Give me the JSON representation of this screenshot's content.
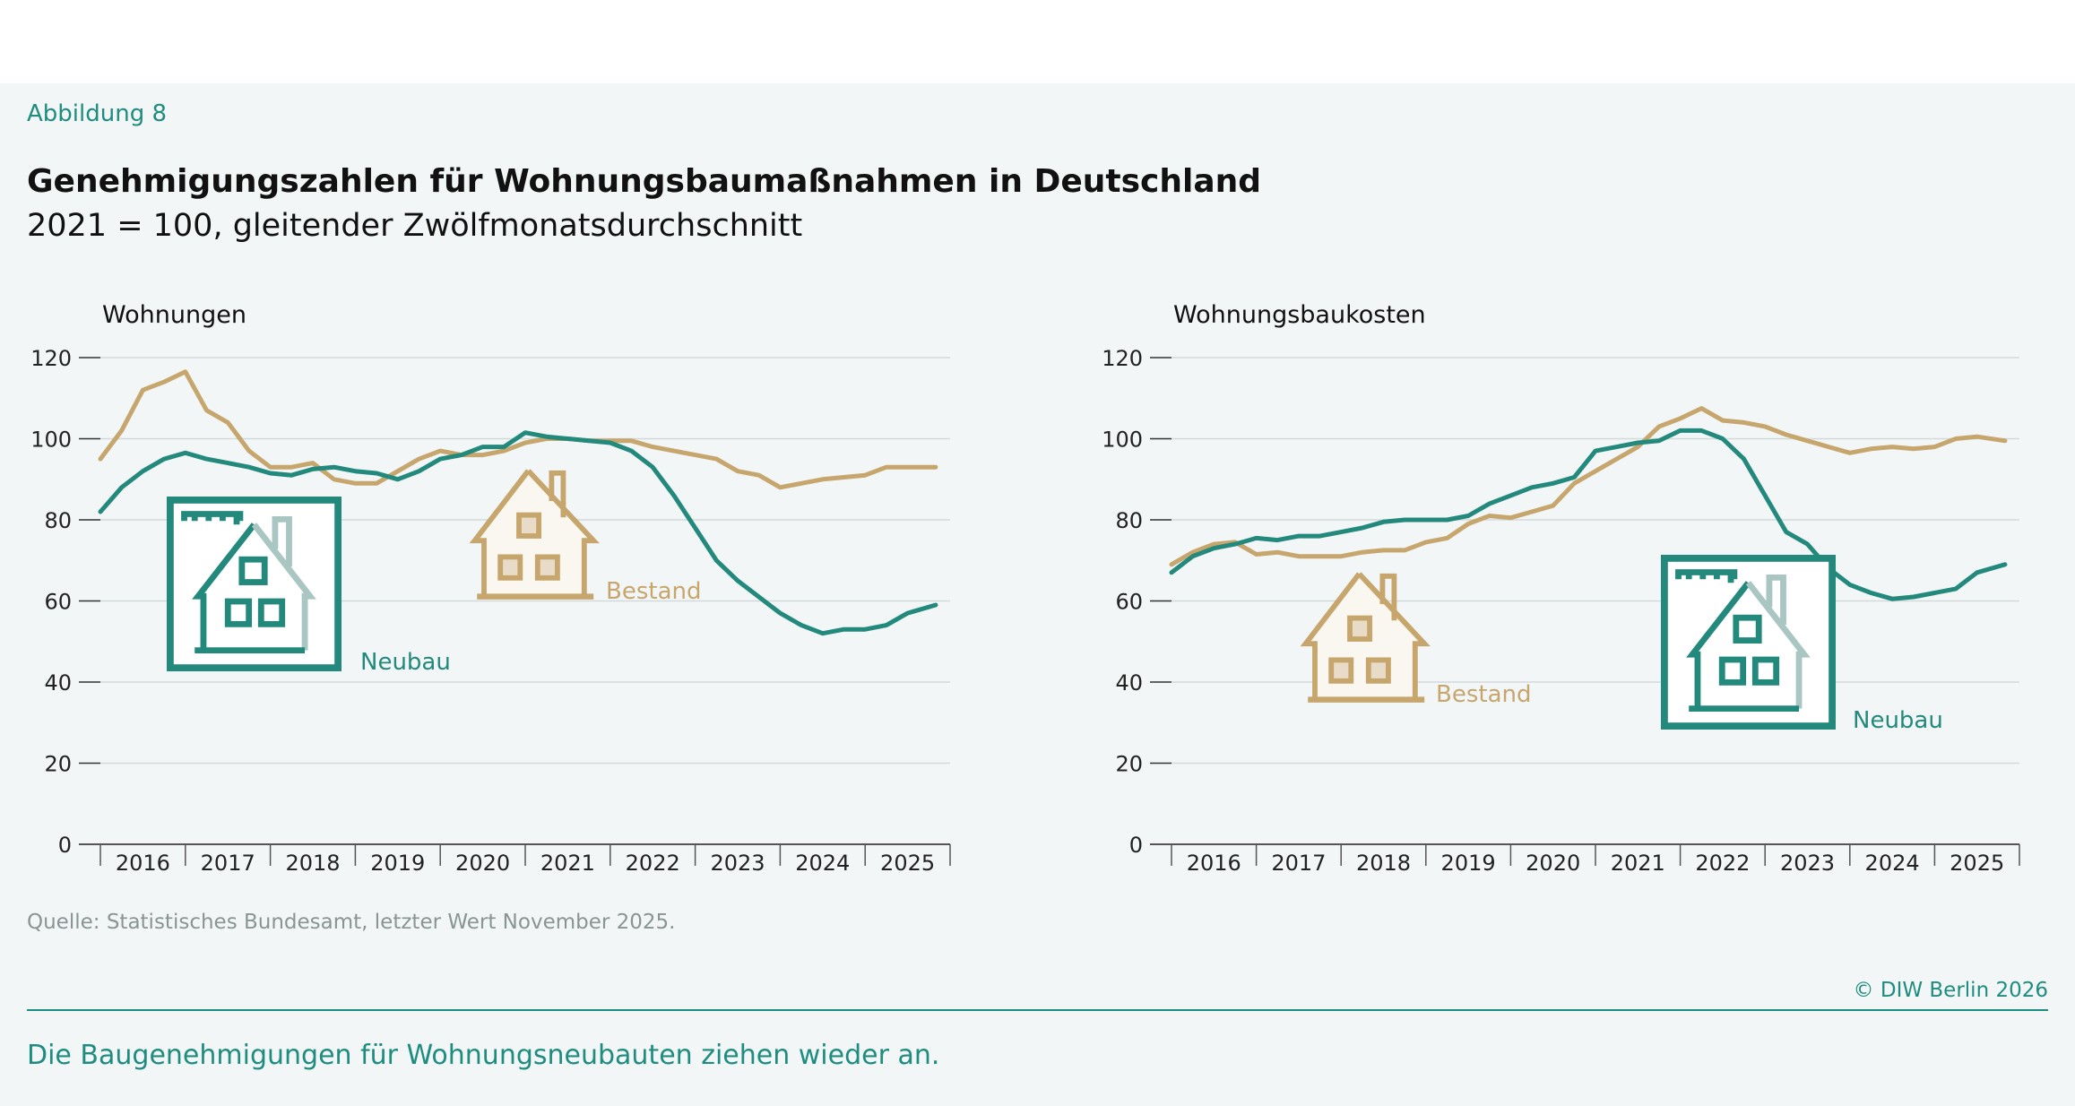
{
  "figure_label": "Abbildung 8",
  "title": "Genehmigungszahlen für Wohnungsbaumaßnahmen in Deutschland",
  "subtitle": "2021 = 100, gleitender Zwölfmonatsdurchschnitt",
  "source": "Quelle: Statistisches Bundesamt, letzter Wert November 2025.",
  "copyright": "© DIW Berlin 2026",
  "caption": "Die Baugenehmigungen für Wohnungsneubauten ziehen wieder an.",
  "colors": {
    "neubau": "#23897d",
    "bestand": "#c6a66d",
    "neubau_light": "#a9c6c3",
    "grid": "#d3d9da"
  },
  "icons": {
    "neubau": "new-building-house-icon",
    "bestand": "existing-house-icon"
  },
  "chart_data": [
    {
      "type": "line",
      "title": "Wohnungen",
      "ylim": [
        0,
        120
      ],
      "yticks": [
        0,
        20,
        40,
        60,
        80,
        100,
        120
      ],
      "xlim": [
        2016,
        2026
      ],
      "xtick_labels": [
        "2016",
        "2017",
        "2018",
        "2019",
        "2020",
        "2021",
        "2022",
        "2023",
        "2024",
        "2025"
      ],
      "grid": true,
      "x": [
        2016.0,
        2016.25,
        2016.5,
        2016.75,
        2017.0,
        2017.25,
        2017.5,
        2017.75,
        2018.0,
        2018.25,
        2018.5,
        2018.75,
        2019.0,
        2019.25,
        2019.5,
        2019.75,
        2020.0,
        2020.25,
        2020.5,
        2020.75,
        2021.0,
        2021.25,
        2021.5,
        2021.75,
        2022.0,
        2022.25,
        2022.5,
        2022.75,
        2023.0,
        2023.25,
        2023.5,
        2023.75,
        2024.0,
        2024.25,
        2024.5,
        2024.75,
        2025.0,
        2025.25,
        2025.5,
        2025.83
      ],
      "series": [
        {
          "name": "Neubau",
          "values": [
            82,
            88,
            92,
            95,
            96.5,
            95,
            94,
            93,
            91.5,
            91,
            92.5,
            93,
            92,
            91.5,
            90,
            92,
            95,
            96,
            98,
            98,
            101.5,
            100.5,
            100,
            99.5,
            99,
            97,
            93,
            86,
            78,
            70,
            65,
            61,
            57,
            54,
            52,
            53,
            53,
            54,
            57,
            59
          ]
        },
        {
          "name": "Bestand",
          "values": [
            95,
            102,
            112,
            114,
            116.5,
            107,
            104,
            97,
            93,
            93,
            94,
            90,
            89,
            89,
            92,
            95,
            97,
            96,
            96,
            97,
            99,
            100,
            100,
            99.5,
            99.5,
            99.5,
            98,
            97,
            96,
            95,
            92,
            91,
            88,
            89,
            90,
            90.5,
            91,
            93,
            93,
            93
          ]
        }
      ]
    },
    {
      "type": "line",
      "title": "Wohnungsbaukosten",
      "ylim": [
        0,
        120
      ],
      "yticks": [
        0,
        20,
        40,
        60,
        80,
        100,
        120
      ],
      "xlim": [
        2016,
        2026
      ],
      "xtick_labels": [
        "2016",
        "2017",
        "2018",
        "2019",
        "2020",
        "2021",
        "2022",
        "2023",
        "2024",
        "2025"
      ],
      "grid": true,
      "x": [
        2016.0,
        2016.25,
        2016.5,
        2016.75,
        2017.0,
        2017.25,
        2017.5,
        2017.75,
        2018.0,
        2018.25,
        2018.5,
        2018.75,
        2019.0,
        2019.25,
        2019.5,
        2019.75,
        2020.0,
        2020.25,
        2020.5,
        2020.75,
        2021.0,
        2021.25,
        2021.5,
        2021.75,
        2022.0,
        2022.25,
        2022.5,
        2022.75,
        2023.0,
        2023.25,
        2023.5,
        2023.75,
        2024.0,
        2024.25,
        2024.5,
        2024.75,
        2025.0,
        2025.25,
        2025.5,
        2025.83
      ],
      "series": [
        {
          "name": "Neubau",
          "values": [
            67,
            71,
            73,
            74,
            75.5,
            75,
            76,
            76,
            77,
            78,
            79.5,
            80,
            80,
            80,
            81,
            84,
            86,
            88,
            89,
            90.5,
            97,
            98,
            99,
            99.5,
            102,
            102,
            100,
            95,
            86,
            77,
            74,
            68,
            64,
            62,
            60.5,
            61,
            62,
            63,
            67,
            69
          ]
        },
        {
          "name": "Bestand",
          "values": [
            69,
            72,
            74,
            74.5,
            71.5,
            72,
            71,
            71,
            71,
            72,
            72.5,
            72.5,
            74.5,
            75.5,
            79,
            81,
            80.5,
            82,
            83.5,
            89,
            92,
            95,
            98,
            103,
            105,
            107.5,
            104.5,
            104,
            103,
            101,
            99.5,
            98,
            96.5,
            97.5,
            98,
            97.5,
            98,
            100,
            100.5,
            99.5
          ]
        }
      ]
    }
  ]
}
